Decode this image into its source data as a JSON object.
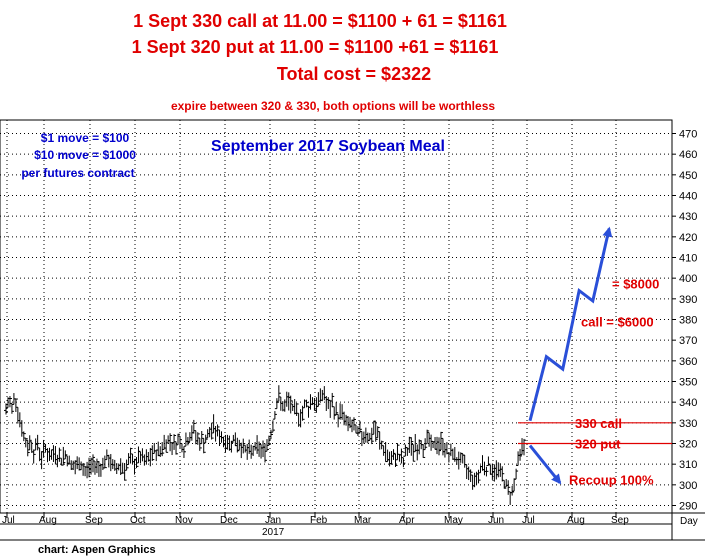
{
  "header": {
    "line1": "1 Sept 330 call at 11.00 = $1100 + 61 = $1161",
    "line2": "1 Sept 320 put at 11.00 = $1100 +61 = $1161",
    "line3": "Total cost = $2322",
    "line4": "expire between 320 & 330, both options will be worthless"
  },
  "notes": [
    "$1 move = $100",
    "$10 move = $1000",
    "per futures contract"
  ],
  "credit": "chart: Aspen Graphics",
  "colors": {
    "price_bars": "#000000",
    "grid": "#000000",
    "header_text": "#e00000",
    "title_text": "#0000cc",
    "arrows": "#2a4fd8",
    "strike_lines": "#e00000"
  },
  "chart_data": {
    "type": "ohlc-bar",
    "title": "September 2017 Soybean Meal",
    "xlabel": "",
    "ylabel": "",
    "x_unit_label": "Day",
    "ylim": [
      290,
      470
    ],
    "yticks": [
      290,
      300,
      310,
      320,
      330,
      340,
      350,
      360,
      370,
      380,
      390,
      400,
      410,
      420,
      430,
      440,
      450,
      460,
      470
    ],
    "xticks": [
      "Jul",
      "Aug",
      "Sep",
      "Oct",
      "Nov",
      "Dec",
      "Jan",
      "Feb",
      "Mar",
      "Apr",
      "May",
      "Jun",
      "Jul",
      "Aug",
      "Sep"
    ],
    "year_label": "2017",
    "grid": true,
    "price_path": [
      [
        0,
        336
      ],
      [
        3,
        341
      ],
      [
        6,
        337
      ],
      [
        9,
        344
      ],
      [
        12,
        336
      ],
      [
        15,
        330
      ],
      [
        18,
        323
      ],
      [
        22,
        318
      ],
      [
        25,
        322
      ],
      [
        28,
        316
      ],
      [
        32,
        320
      ],
      [
        36,
        313
      ],
      [
        40,
        318
      ],
      [
        45,
        313
      ],
      [
        50,
        316
      ],
      [
        55,
        312
      ],
      [
        60,
        315
      ],
      [
        65,
        310
      ],
      [
        70,
        308
      ],
      [
        75,
        311
      ],
      [
        80,
        306
      ],
      [
        85,
        309
      ],
      [
        90,
        310
      ],
      [
        95,
        308
      ],
      [
        100,
        312
      ],
      [
        105,
        312
      ],
      [
        110,
        307
      ],
      [
        115,
        310
      ],
      [
        120,
        308
      ],
      [
        125,
        312
      ],
      [
        130,
        310
      ],
      [
        135,
        314
      ],
      [
        140,
        311
      ],
      [
        145,
        313
      ],
      [
        150,
        316
      ],
      [
        155,
        316
      ],
      [
        160,
        320
      ],
      [
        165,
        322
      ],
      [
        170,
        319
      ],
      [
        175,
        322
      ],
      [
        180,
        318
      ],
      [
        185,
        324
      ],
      [
        190,
        326
      ],
      [
        195,
        321
      ],
      [
        200,
        321
      ],
      [
        205,
        324
      ],
      [
        210,
        328
      ],
      [
        215,
        324
      ],
      [
        220,
        322
      ],
      [
        225,
        320
      ],
      [
        230,
        322
      ],
      [
        235,
        320
      ],
      [
        240,
        318
      ],
      [
        245,
        315
      ],
      [
        250,
        317
      ],
      [
        255,
        318
      ],
      [
        260,
        316
      ],
      [
        265,
        320
      ],
      [
        270,
        330
      ],
      [
        273,
        338
      ],
      [
        276,
        342
      ],
      [
        279,
        339
      ],
      [
        282,
        337
      ],
      [
        285,
        341
      ],
      [
        288,
        339
      ],
      [
        291,
        334
      ],
      [
        294,
        336
      ],
      [
        297,
        333
      ],
      [
        300,
        335
      ],
      [
        303,
        340
      ],
      [
        306,
        337
      ],
      [
        309,
        342
      ],
      [
        312,
        340
      ],
      [
        315,
        338
      ],
      [
        318,
        343
      ],
      [
        321,
        345
      ],
      [
        324,
        340
      ],
      [
        327,
        336
      ],
      [
        330,
        339
      ],
      [
        333,
        336
      ],
      [
        336,
        333
      ],
      [
        339,
        335
      ],
      [
        342,
        333
      ],
      [
        345,
        328
      ],
      [
        348,
        330
      ],
      [
        351,
        328
      ],
      [
        354,
        325
      ],
      [
        357,
        326
      ],
      [
        360,
        323
      ],
      [
        363,
        326
      ],
      [
        366,
        324
      ],
      [
        369,
        322
      ],
      [
        372,
        327
      ],
      [
        375,
        325
      ],
      [
        378,
        321
      ],
      [
        381,
        318
      ],
      [
        384,
        316
      ],
      [
        387,
        313
      ],
      [
        390,
        311
      ],
      [
        393,
        313
      ],
      [
        396,
        316
      ],
      [
        399,
        312
      ],
      [
        402,
        311
      ],
      [
        405,
        316
      ],
      [
        408,
        319
      ],
      [
        411,
        316
      ],
      [
        414,
        320
      ],
      [
        417,
        317
      ],
      [
        420,
        321
      ],
      [
        423,
        318
      ],
      [
        426,
        322
      ],
      [
        429,
        320
      ],
      [
        432,
        318
      ],
      [
        435,
        321
      ],
      [
        438,
        319
      ],
      [
        441,
        321
      ],
      [
        444,
        318
      ],
      [
        447,
        315
      ],
      [
        450,
        314
      ],
      [
        453,
        316
      ],
      [
        456,
        312
      ],
      [
        459,
        313
      ],
      [
        462,
        310
      ],
      [
        465,
        308
      ],
      [
        468,
        306
      ],
      [
        471,
        304
      ],
      [
        474,
        302
      ],
      [
        477,
        304
      ],
      [
        480,
        308
      ],
      [
        483,
        311
      ],
      [
        486,
        308
      ],
      [
        489,
        310
      ],
      [
        492,
        307
      ],
      [
        495,
        306
      ],
      [
        498,
        308
      ],
      [
        501,
        305
      ],
      [
        504,
        302
      ],
      [
        507,
        298
      ],
      [
        510,
        296
      ],
      [
        513,
        298
      ],
      [
        516,
        306
      ],
      [
        519,
        313
      ],
      [
        522,
        318
      ],
      [
        525,
        319
      ]
    ],
    "strike_lines": [
      {
        "price": 330,
        "label": "330 call"
      },
      {
        "price": 320,
        "label": "320 put"
      }
    ],
    "up_arrow_path": [
      [
        0,
        331
      ],
      [
        6,
        362
      ],
      [
        12,
        356
      ],
      [
        18,
        394
      ],
      [
        23,
        389
      ],
      [
        29,
        424
      ]
    ],
    "down_arrow_path": [
      [
        0,
        319
      ],
      [
        11,
        301
      ]
    ],
    "annotations": [
      {
        "text": "= $8000",
        "price": 397.5
      },
      {
        "text": "call = $6000",
        "price": 379
      },
      {
        "text": "Recoup 100%",
        "price": 302.5
      }
    ]
  }
}
